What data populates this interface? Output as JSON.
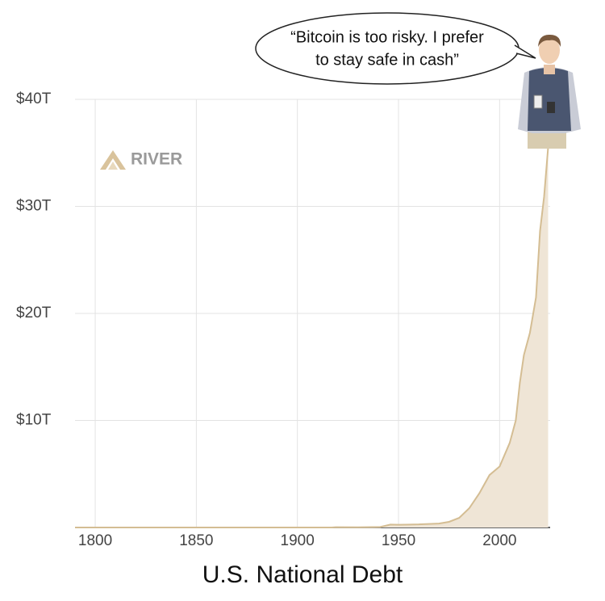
{
  "chart_data": {
    "type": "area",
    "title": "U.S. National Debt",
    "annotation_lines": [
      "“Bitcoin is too risky. I prefer",
      "to stay safe in cash”"
    ],
    "watermark": "RIVER",
    "x": [
      1790,
      1800,
      1850,
      1900,
      1917,
      1919,
      1930,
      1941,
      1946,
      1950,
      1960,
      1970,
      1975,
      1980,
      1985,
      1990,
      1995,
      2000,
      2005,
      2008,
      2010,
      2012,
      2015,
      2018,
      2020,
      2022,
      2024
    ],
    "values": [
      8e-05,
      8e-05,
      6e-05,
      0.0012,
      0.003,
      0.027,
      0.016,
      0.049,
      0.27,
      0.257,
      0.29,
      0.37,
      0.53,
      0.9,
      1.8,
      3.2,
      4.9,
      5.7,
      7.9,
      10.0,
      13.5,
      16.1,
      18.2,
      21.5,
      27.7,
      30.9,
      35.5
    ],
    "line_color": "#d4bd93",
    "fill_color": "#efe5d6",
    "xlim": [
      1790,
      2025
    ],
    "ylim": [
      0,
      40
    ],
    "xticks": [
      1800,
      1850,
      1900,
      1950,
      2000
    ],
    "yticks": [
      {
        "value": 10,
        "label": "$10T"
      },
      {
        "value": 20,
        "label": "$20T"
      },
      {
        "value": 30,
        "label": "$30T"
      },
      {
        "value": 40,
        "label": "$40T"
      }
    ],
    "grid": true
  }
}
